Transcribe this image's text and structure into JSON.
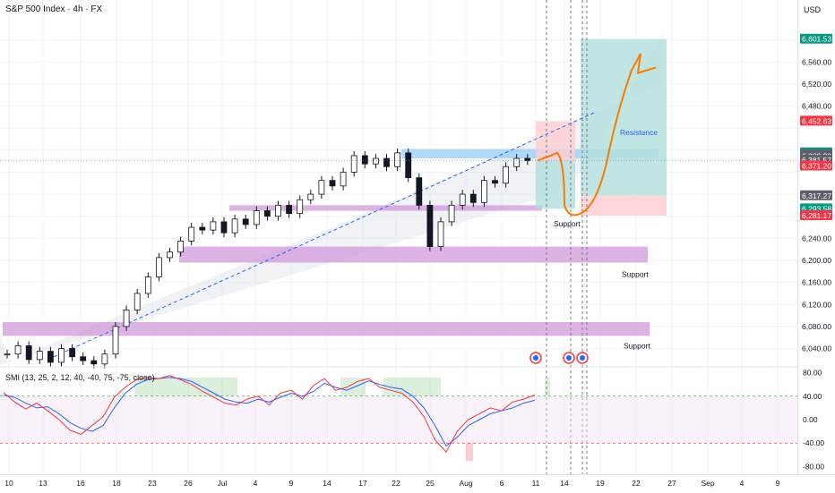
{
  "header": {
    "title": "S&P 500 Index · 4h · FX",
    "currency": "USD"
  },
  "indicator": {
    "title": "SMI (13, 25, 2, 12, 40, -40, 75, -75, close)"
  },
  "colors": {
    "up_candle": "#131722",
    "down_candle": "#131722",
    "zone_purple": "#ce93d8",
    "zone_blue": "#90caf9",
    "trendline": "#2962ff",
    "projection": "#f57c00",
    "target_green": "#b2dfdb",
    "stop_red": "#ffcdd2",
    "smi_blue": "#2962ff",
    "smi_red": "#f23645",
    "overbought": "#4caf50",
    "oversold": "#f23645"
  },
  "chart_data": [
    {
      "type": "candlestick",
      "title": "S&P 500 Index · 4h · FX",
      "x_ticks": [
        "10",
        "13",
        "16",
        "18",
        "23",
        "26",
        "Jul",
        "4",
        "9",
        "14",
        "17",
        "22",
        "25",
        "Aug",
        "6",
        "11",
        "14",
        "19",
        "22",
        "27",
        "Sep",
        "4",
        "9"
      ],
      "y_ticks": [
        6040,
        6080,
        6120,
        6160,
        6200,
        6240,
        6280,
        6320,
        6360,
        6400,
        6440,
        6480,
        6520,
        6560,
        6600
      ],
      "y_tick_labels": [
        "6,040.00",
        "6,080.00",
        "6,120.00",
        "6,160.00",
        "6,200.00",
        "6,240.00",
        "",
        "",
        "",
        "",
        "",
        "6,480.00",
        "6,520.00",
        "6,560.00",
        ""
      ],
      "ylim": [
        6010,
        6640
      ],
      "price_tags": [
        {
          "label": "6,601.53",
          "value": 6601.53,
          "color": "#089981"
        },
        {
          "label": "6,452.63",
          "value": 6452.63,
          "color": "#f23645"
        },
        {
          "label": "6,395.23",
          "value": 6395.23,
          "color": "#089981"
        },
        {
          "label": "6,391.72",
          "value": 6391.72,
          "color": "#5d606b"
        },
        {
          "label": "6,389.30",
          "value": 6389.3,
          "color": "#5d606b"
        },
        {
          "label": "02:53:37",
          "value": 6378.5,
          "color": "#5d606b"
        },
        {
          "label": "6,381.57",
          "value": 6381.57,
          "color": "#5d606b"
        },
        {
          "label": "6,371.20",
          "value": 6371.2,
          "color": "#f23645"
        },
        {
          "label": "6,317.27",
          "value": 6317.27,
          "color": "#5d606b"
        },
        {
          "label": "6,293.58",
          "value": 6293.58,
          "color": "#089981"
        },
        {
          "label": "6,281.17",
          "value": 6281.17,
          "color": "#f23645"
        }
      ],
      "zones": [
        {
          "name": "Resistance",
          "label": "Resistance",
          "from_price": 6385,
          "to_price": 6402,
          "type": "resistance"
        },
        {
          "name": "Support 1",
          "label": "Support",
          "from_price": 6290,
          "to_price": 6300,
          "type": "support"
        },
        {
          "name": "Support 2",
          "label": "Support",
          "from_price": 6196,
          "to_price": 6225,
          "type": "support"
        },
        {
          "name": "Support 3",
          "label": "Support",
          "from_price": 6063,
          "to_price": 6088,
          "type": "support"
        }
      ],
      "series": [
        {
          "name": "",
          "close_path": [
            {
              "t": 0,
              "p": 6030
            },
            {
              "t": 1,
              "p": 6045
            },
            {
              "t": 2,
              "p": 6020
            },
            {
              "t": 3,
              "p": 6035
            },
            {
              "t": 4,
              "p": 6015
            },
            {
              "t": 5,
              "p": 6040
            },
            {
              "t": 6,
              "p": 6025
            },
            {
              "t": 7,
              "p": 6018
            },
            {
              "t": 8,
              "p": 6012
            },
            {
              "t": 9,
              "p": 6030
            },
            {
              "t": 10,
              "p": 6080
            },
            {
              "t": 11,
              "p": 6110
            },
            {
              "t": 12,
              "p": 6140
            },
            {
              "t": 13,
              "p": 6170
            },
            {
              "t": 14,
              "p": 6205
            },
            {
              "t": 15,
              "p": 6215
            },
            {
              "t": 16,
              "p": 6235
            },
            {
              "t": 17,
              "p": 6260
            },
            {
              "t": 18,
              "p": 6255
            },
            {
              "t": 19,
              "p": 6270
            },
            {
              "t": 20,
              "p": 6250
            },
            {
              "t": 21,
              "p": 6275
            },
            {
              "t": 22,
              "p": 6265
            },
            {
              "t": 23,
              "p": 6290
            },
            {
              "t": 24,
              "p": 6280
            },
            {
              "t": 25,
              "p": 6300
            },
            {
              "t": 26,
              "p": 6285
            },
            {
              "t": 27,
              "p": 6310
            },
            {
              "t": 28,
              "p": 6320
            },
            {
              "t": 29,
              "p": 6345
            },
            {
              "t": 30,
              "p": 6335
            },
            {
              "t": 31,
              "p": 6360
            },
            {
              "t": 32,
              "p": 6390
            },
            {
              "t": 33,
              "p": 6375
            },
            {
              "t": 34,
              "p": 6385
            },
            {
              "t": 35,
              "p": 6370
            },
            {
              "t": 36,
              "p": 6395
            },
            {
              "t": 37,
              "p": 6350
            },
            {
              "t": 38,
              "p": 6300
            },
            {
              "t": 39,
              "p": 6225
            },
            {
              "t": 40,
              "p": 6270
            },
            {
              "t": 41,
              "p": 6300
            },
            {
              "t": 42,
              "p": 6320
            },
            {
              "t": 43,
              "p": 6305
            },
            {
              "t": 44,
              "p": 6345
            },
            {
              "t": 45,
              "p": 6340
            },
            {
              "t": 46,
              "p": 6370
            },
            {
              "t": 47,
              "p": 6385
            },
            {
              "t": 48,
              "p": 6381
            }
          ]
        }
      ],
      "annotations": [
        "Resistance",
        "Support",
        "Support",
        "Support"
      ]
    },
    {
      "type": "line",
      "title": "SMI (13, 25, 2, 12, 40, -40, 75, -75, close)",
      "y_ticks": [
        80,
        40,
        0,
        -40,
        -80
      ],
      "y_tick_labels": [
        "80.00",
        "40.00",
        "0.00",
        "-40.00",
        "-80.00"
      ],
      "ylim": [
        -90,
        90
      ],
      "levels": [
        40,
        -40
      ],
      "series": [
        {
          "name": "",
          "values": [
            42,
            38,
            28,
            20,
            22,
            10,
            -5,
            -15,
            -20,
            -10,
            20,
            45,
            60,
            68,
            70,
            72,
            70,
            65,
            55,
            45,
            35,
            30,
            28,
            35,
            30,
            38,
            45,
            40,
            48,
            62,
            55,
            50,
            58,
            66,
            60,
            55,
            52,
            40,
            20,
            -10,
            -45,
            -30,
            -10,
            0,
            10,
            15,
            20,
            28,
            33
          ]
        },
        {
          "name": "",
          "values": [
            46,
            30,
            18,
            28,
            15,
            0,
            -18,
            -25,
            -10,
            5,
            38,
            55,
            68,
            72,
            70,
            75,
            68,
            60,
            48,
            38,
            28,
            25,
            35,
            40,
            25,
            45,
            50,
            35,
            58,
            70,
            50,
            55,
            65,
            70,
            55,
            50,
            45,
            30,
            5,
            -35,
            -55,
            -20,
            0,
            10,
            20,
            15,
            30,
            35,
            42
          ]
        }
      ]
    }
  ]
}
